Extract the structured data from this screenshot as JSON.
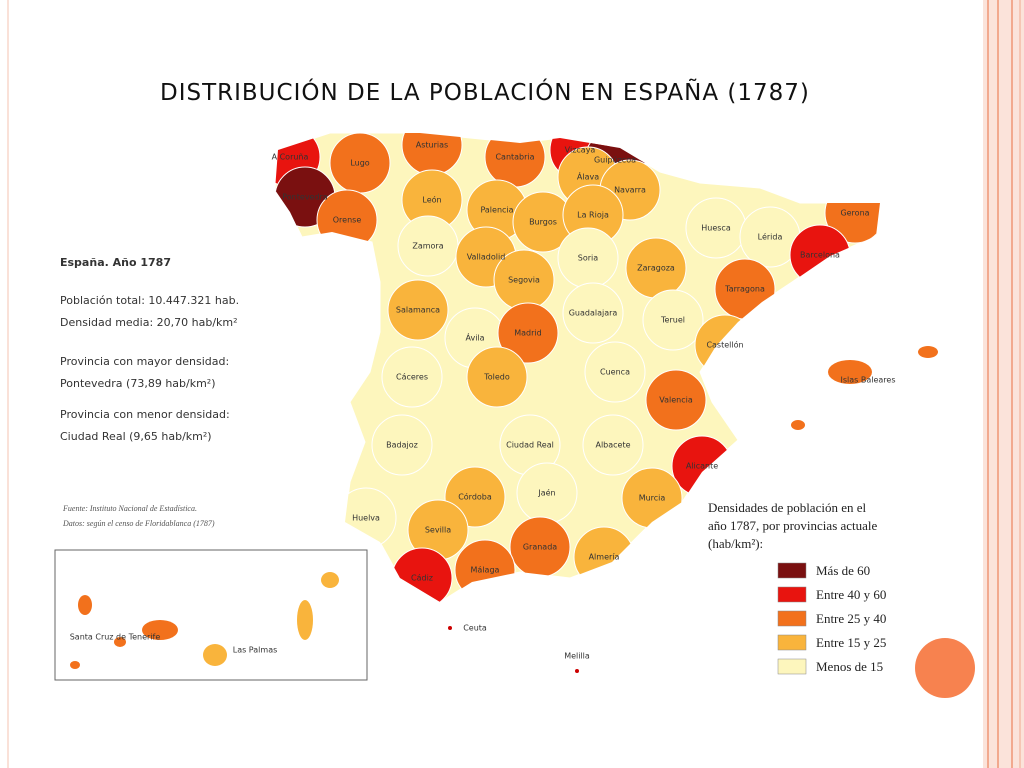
{
  "title": "DISTRIBUCIÓN DE LA POBLACIÓN EN ESPAÑA (1787)",
  "info": {
    "heading": "España. Año 1787",
    "lines": [
      "Población total: 10.447.321 hab.",
      "Densidad media: 20,70 hab/km²",
      "Provincia con mayor densidad:",
      "Pontevedra (73,89 hab/km²)",
      "Provincia con menor densidad:",
      "Ciudad Real (9,65 hab/km²)"
    ]
  },
  "source": [
    "Fuente: Instituto Nacional de Estadística.",
    "Datos: según el censo de Floridablanca (1787)"
  ],
  "legend": {
    "title": [
      "Densidades de población en el",
      "año 1787, por provincias actuale",
      "(hab/km²):"
    ],
    "items": [
      {
        "label": "Más de 60",
        "color": "#7a1010"
      },
      {
        "label": "Entre 40 y 60",
        "color": "#e8140f"
      },
      {
        "label": "Entre 25 y 40",
        "color": "#f2711c"
      },
      {
        "label": "Entre 15 y 25",
        "color": "#f9b43c"
      },
      {
        "label": "Menos de 15",
        "color": "#fdf6bd"
      }
    ]
  },
  "provinces": [
    {
      "name": "A Coruña",
      "class": 1
    },
    {
      "name": "Lugo",
      "class": 2
    },
    {
      "name": "Asturias",
      "class": 2
    },
    {
      "name": "Cantabria",
      "class": 2
    },
    {
      "name": "Vizcaya",
      "class": 1
    },
    {
      "name": "Guipúzcoa",
      "class": 0
    },
    {
      "name": "Álava",
      "class": 3
    },
    {
      "name": "Navarra",
      "class": 3
    },
    {
      "name": "Pontevedra",
      "class": 0
    },
    {
      "name": "Orense",
      "class": 2
    },
    {
      "name": "León",
      "class": 3
    },
    {
      "name": "Palencia",
      "class": 3
    },
    {
      "name": "Burgos",
      "class": 3
    },
    {
      "name": "La Rioja",
      "class": 3
    },
    {
      "name": "Huesca",
      "class": 4
    },
    {
      "name": "Lérida",
      "class": 4
    },
    {
      "name": "Gerona",
      "class": 2
    },
    {
      "name": "Barcelona",
      "class": 1
    },
    {
      "name": "Zamora",
      "class": 4
    },
    {
      "name": "Valladolid",
      "class": 3
    },
    {
      "name": "Soria",
      "class": 4
    },
    {
      "name": "Zaragoza",
      "class": 3
    },
    {
      "name": "Tarragona",
      "class": 2
    },
    {
      "name": "Segovia",
      "class": 3
    },
    {
      "name": "Salamanca",
      "class": 3
    },
    {
      "name": "Guadalajara",
      "class": 4
    },
    {
      "name": "Teruel",
      "class": 4
    },
    {
      "name": "Ávila",
      "class": 4
    },
    {
      "name": "Madrid",
      "class": 2
    },
    {
      "name": "Castellón",
      "class": 3
    },
    {
      "name": "Cáceres",
      "class": 4
    },
    {
      "name": "Toledo",
      "class": 3
    },
    {
      "name": "Cuenca",
      "class": 4
    },
    {
      "name": "Islas Baleares",
      "class": 2
    },
    {
      "name": "Valencia",
      "class": 2
    },
    {
      "name": "Badajoz",
      "class": 4
    },
    {
      "name": "Ciudad Real",
      "class": 4
    },
    {
      "name": "Albacete",
      "class": 4
    },
    {
      "name": "Alicante",
      "class": 1
    },
    {
      "name": "Córdoba",
      "class": 3
    },
    {
      "name": "Jaén",
      "class": 4
    },
    {
      "name": "Murcia",
      "class": 3
    },
    {
      "name": "Huelva",
      "class": 4
    },
    {
      "name": "Sevilla",
      "class": 3
    },
    {
      "name": "Granada",
      "class": 2
    },
    {
      "name": "Almería",
      "class": 3
    },
    {
      "name": "Cádiz",
      "class": 1
    },
    {
      "name": "Málaga",
      "class": 2
    },
    {
      "name": "Ceuta",
      "class": 4
    },
    {
      "name": "Melilla",
      "class": 4
    },
    {
      "name": "Santa Cruz de Tenerife",
      "class": 2
    },
    {
      "name": "Las Palmas",
      "class": 3
    }
  ]
}
